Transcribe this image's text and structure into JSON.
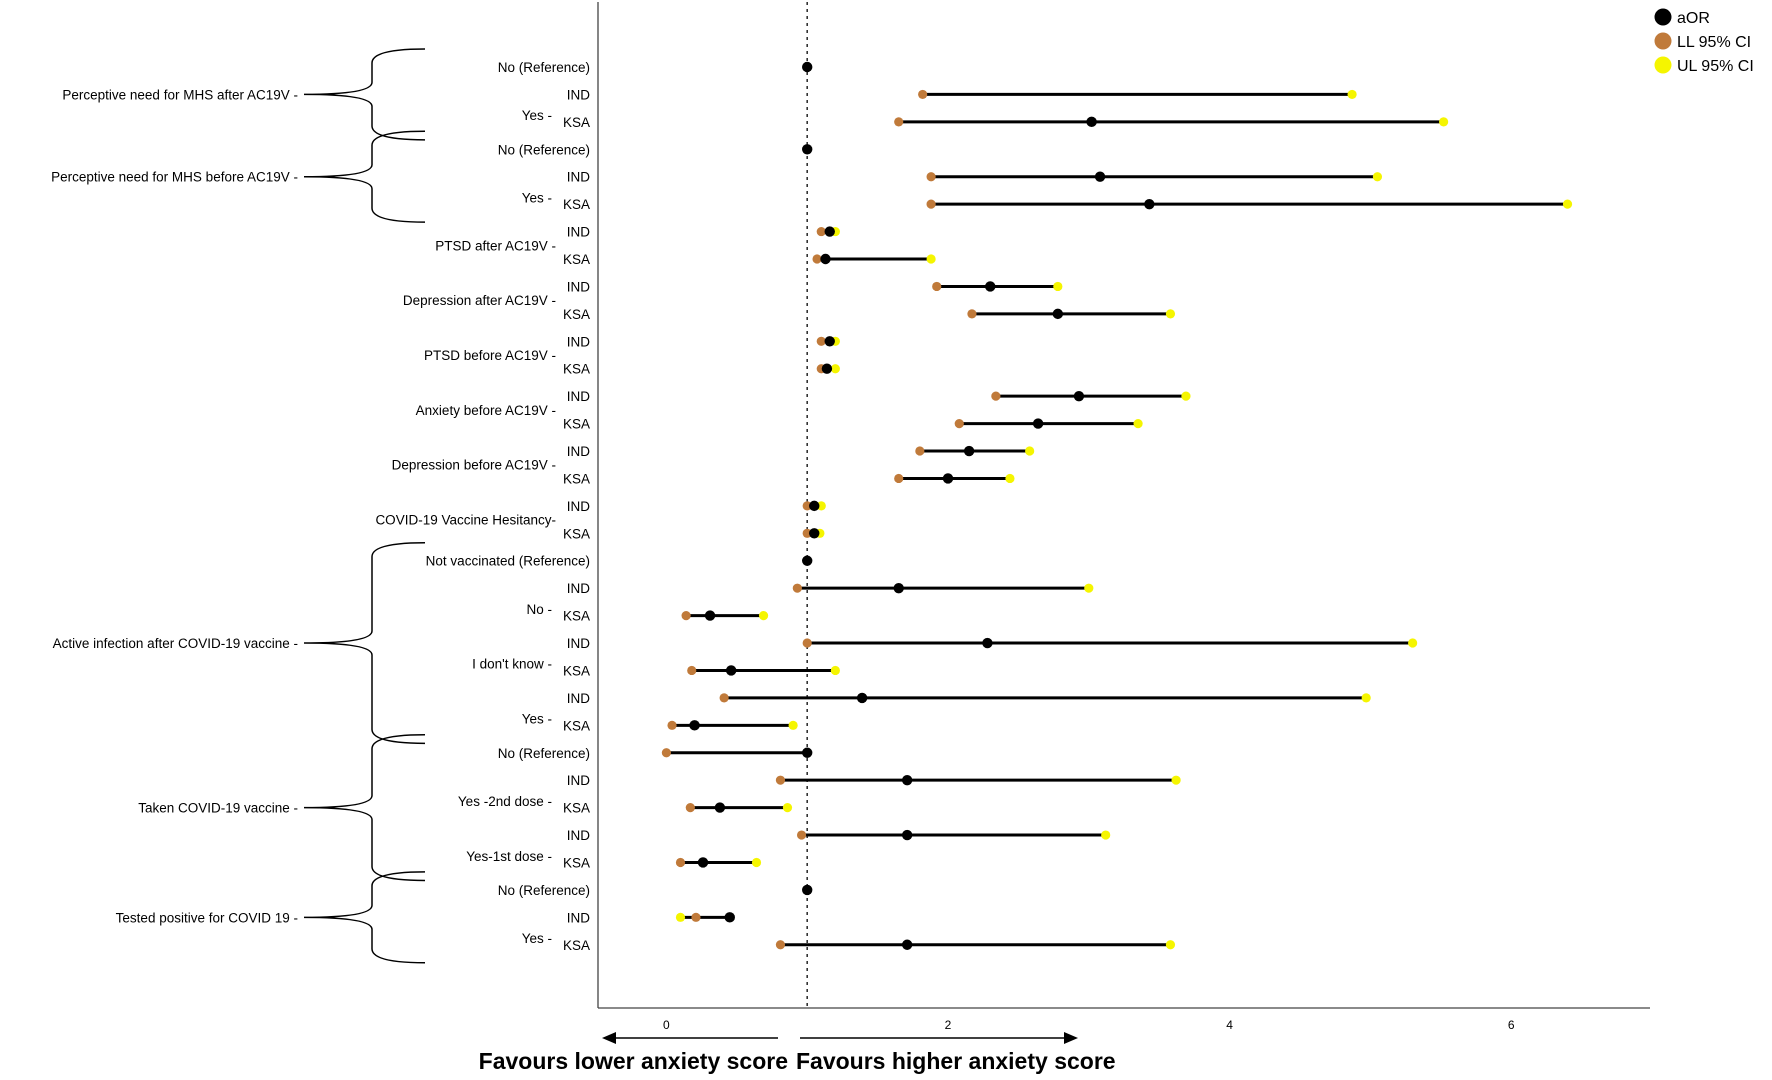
{
  "chart_data": {
    "type": "forest",
    "xlim": [
      -0.5,
      7.0
    ],
    "reference_line_x": 1,
    "x_ticks": [
      0,
      2,
      4,
      6
    ],
    "legend": {
      "position": "top-right",
      "entries": [
        {
          "label": "aOR",
          "color": "#000000"
        },
        {
          "label": "LL 95% CI",
          "color": "#c07a3a"
        },
        {
          "label": "UL 95% CI",
          "color": "#f5f500"
        }
      ]
    },
    "favours_left": "Favours lower anxiety score",
    "favours_right": "Favours higher anxiety score",
    "groups": [
      {
        "label": "Perceptive need for MHS after AC19V -",
        "start_row": 0,
        "end_row": 2,
        "brace": true
      },
      {
        "label": "Perceptive need for MHS before AC19V -",
        "start_row": 3,
        "end_row": 5,
        "brace": true
      },
      {
        "label": "PTSD after AC19V -",
        "start_row": 6,
        "end_row": 7,
        "brace": false
      },
      {
        "label": "Depression after AC19V -",
        "start_row": 8,
        "end_row": 9,
        "brace": false
      },
      {
        "label": "PTSD before AC19V -",
        "start_row": 10,
        "end_row": 11,
        "brace": false
      },
      {
        "label": "Anxiety before AC19V -",
        "start_row": 12,
        "end_row": 13,
        "brace": false
      },
      {
        "label": "Depression before AC19V -",
        "start_row": 14,
        "end_row": 15,
        "brace": false
      },
      {
        "label": "COVID-19 Vaccine Hesitancy-",
        "start_row": 16,
        "end_row": 17,
        "brace": false
      },
      {
        "label": "Active infection after COVID-19 vaccine -",
        "start_row": 18,
        "end_row": 24,
        "brace": true
      },
      {
        "label": "Taken COVID-19 vaccine -",
        "start_row": 25,
        "end_row": 29,
        "brace": true
      },
      {
        "label": "Tested positive for COVID 19 -",
        "start_row": 30,
        "end_row": 32,
        "brace": true
      }
    ],
    "sublabels": [
      {
        "label": "Yes -",
        "rows": [
          1,
          2
        ]
      },
      {
        "label": "Yes -",
        "rows": [
          4,
          5
        ]
      },
      {
        "label": "No -",
        "rows": [
          19,
          20
        ]
      },
      {
        "label": "I don't know -",
        "rows": [
          21,
          22
        ]
      },
      {
        "label": "Yes -",
        "rows": [
          23,
          24
        ]
      },
      {
        "label": "Yes -2nd dose -",
        "rows": [
          26,
          27
        ]
      },
      {
        "label": "Yes-1st dose -",
        "rows": [
          28,
          29
        ]
      },
      {
        "label": "Yes -",
        "rows": [
          31,
          32
        ]
      }
    ],
    "rows": [
      {
        "label": "No (Reference)",
        "aor": 1.0,
        "ll": null,
        "ul": null
      },
      {
        "label": "IND",
        "aor": null,
        "ll": 1.82,
        "ul": 4.87
      },
      {
        "label": "KSA",
        "aor": 3.02,
        "ll": 1.65,
        "ul": 5.52
      },
      {
        "label": "No (Reference)",
        "aor": 1.0,
        "ll": null,
        "ul": null
      },
      {
        "label": "IND",
        "aor": 3.08,
        "ll": 1.88,
        "ul": 5.05
      },
      {
        "label": "KSA",
        "aor": 3.43,
        "ll": 1.88,
        "ul": 6.4
      },
      {
        "label": "IND",
        "aor": 1.16,
        "ll": 1.1,
        "ul": 1.2
      },
      {
        "label": "KSA",
        "aor": 1.13,
        "ll": 1.07,
        "ul": 1.88
      },
      {
        "label": "IND",
        "aor": 2.3,
        "ll": 1.92,
        "ul": 2.78
      },
      {
        "label": "KSA",
        "aor": 2.78,
        "ll": 2.17,
        "ul": 3.58
      },
      {
        "label": "IND",
        "aor": 1.16,
        "ll": 1.1,
        "ul": 1.2
      },
      {
        "label": "KSA",
        "aor": 1.14,
        "ll": 1.1,
        "ul": 1.2
      },
      {
        "label": "IND",
        "aor": 2.93,
        "ll": 2.34,
        "ul": 3.69
      },
      {
        "label": "KSA",
        "aor": 2.64,
        "ll": 2.08,
        "ul": 3.35
      },
      {
        "label": "IND",
        "aor": 2.15,
        "ll": 1.8,
        "ul": 2.58
      },
      {
        "label": "KSA",
        "aor": 2.0,
        "ll": 1.65,
        "ul": 2.44
      },
      {
        "label": "IND",
        "aor": 1.05,
        "ll": 1.0,
        "ul": 1.1
      },
      {
        "label": "KSA",
        "aor": 1.05,
        "ll": 1.0,
        "ul": 1.09
      },
      {
        "label": "Not vaccinated (Reference)",
        "aor": 1.0,
        "ll": null,
        "ul": null
      },
      {
        "label": "IND",
        "aor": 1.65,
        "ll": 0.93,
        "ul": 3.0
      },
      {
        "label": "KSA",
        "aor": 0.31,
        "ll": 0.14,
        "ul": 0.69
      },
      {
        "label": "IND",
        "aor": 2.28,
        "ll": 1.0,
        "ul": 5.3
      },
      {
        "label": "KSA",
        "aor": 0.46,
        "ll": 0.18,
        "ul": 1.2
      },
      {
        "label": "IND",
        "aor": 1.39,
        "ll": 0.41,
        "ul": 4.97
      },
      {
        "label": "KSA",
        "aor": 0.2,
        "ll": 0.04,
        "ul": 0.9
      },
      {
        "label": "No (Reference)",
        "aor": 1.0,
        "ll": 0.0,
        "ul": null
      },
      {
        "label": "IND",
        "aor": 1.71,
        "ll": 0.81,
        "ul": 3.62
      },
      {
        "label": "KSA",
        "aor": 0.38,
        "ll": 0.17,
        "ul": 0.86
      },
      {
        "label": "IND",
        "aor": 1.71,
        "ll": 0.96,
        "ul": 3.12
      },
      {
        "label": "KSA",
        "aor": 0.26,
        "ll": 0.1,
        "ul": 0.64
      },
      {
        "label": "No (Reference)",
        "aor": 1.0,
        "ll": null,
        "ul": null
      },
      {
        "label": "IND",
        "aor": 0.45,
        "ll": 0.21,
        "ul": 0.1
      },
      {
        "label": "KSA",
        "aor": 1.71,
        "ll": 0.81,
        "ul": 3.58
      }
    ]
  }
}
